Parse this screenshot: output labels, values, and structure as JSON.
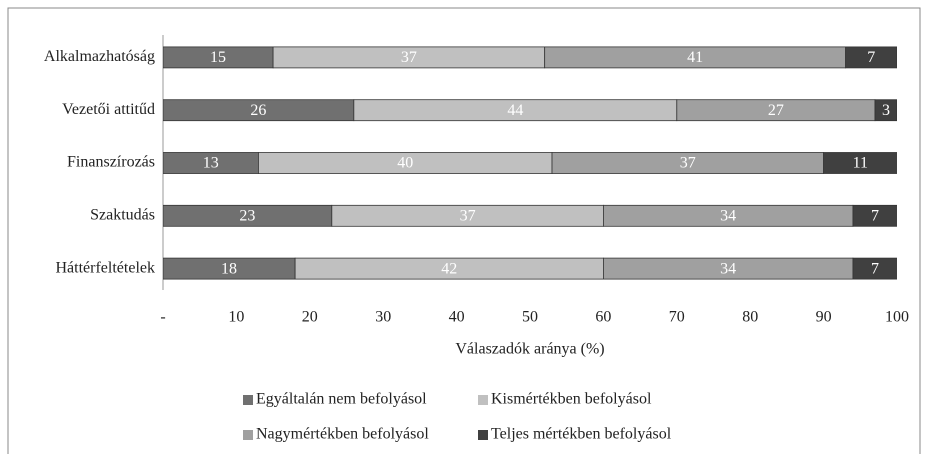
{
  "chart_data": {
    "type": "stacked-bar-horizontal",
    "x_label": "Válaszadók aránya (%)",
    "categories": [
      "Alkalmazhatóság",
      "Vezetői attitűd",
      "Finanszírozás",
      "Szaktudás",
      "Háttérfeltételek"
    ],
    "series": [
      {
        "name": "Egyáltalán nem befolyásol",
        "color": "#707070",
        "values": [
          15,
          26,
          13,
          23,
          18
        ]
      },
      {
        "name": "Kismértékben befolyásol",
        "color": "#c0c0c0",
        "values": [
          37,
          44,
          40,
          37,
          42
        ]
      },
      {
        "name": "Nagymértékben befolyásol",
        "color": "#a0a0a0",
        "values": [
          41,
          27,
          37,
          34,
          34
        ]
      },
      {
        "name": "Teljes mértékben befolyásol",
        "color": "#404040",
        "values": [
          7,
          3,
          11,
          7,
          7
        ]
      }
    ],
    "xlim": [
      0,
      100
    ],
    "xticks": [
      {
        "value": 0,
        "label": "-"
      },
      10,
      20,
      30,
      40,
      50,
      60,
      70,
      80,
      90,
      100
    ],
    "legend": "bottom"
  }
}
